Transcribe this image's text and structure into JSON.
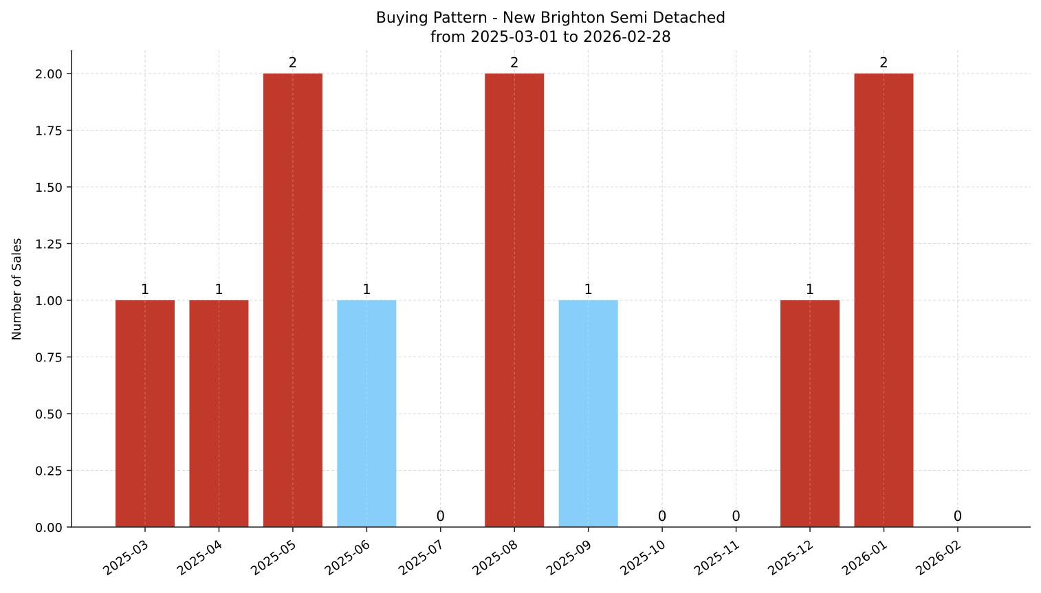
{
  "chart_data": {
    "type": "bar",
    "title": "Buying Pattern - New Brighton Semi Detached",
    "subtitle": "from 2025-03-01 to 2026-02-28",
    "xlabel": "",
    "ylabel": "Number of Sales",
    "categories": [
      "2025-03",
      "2025-04",
      "2025-05",
      "2025-06",
      "2025-07",
      "2025-08",
      "2025-09",
      "2025-10",
      "2025-11",
      "2025-12",
      "2026-01",
      "2026-02"
    ],
    "values": [
      1,
      1,
      2,
      1,
      0,
      2,
      1,
      0,
      0,
      1,
      2,
      0
    ],
    "bar_colors": [
      "#c0392b",
      "#c0392b",
      "#c0392b",
      "#87cefa",
      "#c0392b",
      "#c0392b",
      "#87cefa",
      "#c0392b",
      "#c0392b",
      "#c0392b",
      "#c0392b",
      "#c0392b"
    ],
    "data_labels": [
      "1",
      "1",
      "2",
      "1",
      "0",
      "2",
      "1",
      "0",
      "0",
      "1",
      "2",
      "0"
    ],
    "ylim": [
      0,
      2.1
    ],
    "yticks": [
      0.0,
      0.25,
      0.5,
      0.75,
      1.0,
      1.25,
      1.5,
      1.75,
      2.0
    ],
    "ytick_labels": [
      "0.00",
      "0.25",
      "0.50",
      "0.75",
      "1.00",
      "1.25",
      "1.50",
      "1.75",
      "2.00"
    ],
    "grid": true,
    "legend": null,
    "colors": {
      "primary_bar": "#c0392b",
      "highlight_bar": "#87cefa",
      "grid": "#cccccc",
      "axis": "#222222"
    }
  }
}
